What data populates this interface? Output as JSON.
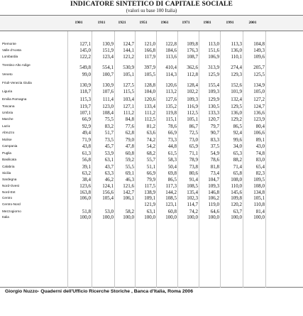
{
  "document": {
    "title": "INDICATORE SINTETICO DI CAPITALE SOCIALE",
    "subtitle": "(valori su base 100 Italia)",
    "source": "Giorgio Nuzzo- Quaderni dell'Ufficio Ricerche Storiche , Banca d'Italia, Roma 2006"
  },
  "table": {
    "columns": [
      "1901",
      "1911",
      "1921",
      "1951",
      "1961",
      "1971",
      "1981",
      "1991",
      "2001"
    ],
    "rows": [
      {
        "region": "Piemonte",
        "values": [
          "127,1",
          "130,9",
          "124,7",
          "121,0",
          "122,8",
          "109,8",
          "113,0",
          "113,3",
          "104,8"
        ]
      },
      {
        "region": "Valle d'Aosta",
        "values": [
          "145,0",
          "151,9",
          "144,1",
          "166,8",
          "184,6",
          "176,3",
          "151,6",
          "136,0",
          "149,3"
        ]
      },
      {
        "region": "Lombardia",
        "values": [
          "122,2",
          "123,4",
          "121,2",
          "117,9",
          "113,6",
          "108,7",
          "106,9",
          "110,1",
          "109,6"
        ]
      },
      {
        "region": "Trentino-Alto Adige",
        "values": [
          "549,8",
          "554,1",
          "530,9",
          "397,9",
          "410,4",
          "362,6",
          "313,9",
          "274,4",
          "205,7"
        ]
      },
      {
        "region": "Veneto",
        "values": [
          "99,0",
          "100,7",
          "105,1",
          "105,5",
          "114,3",
          "112,8",
          "125,9",
          "129,3",
          "125,5"
        ]
      },
      {
        "region": "Friuli-Venezia Giulia",
        "values": [
          "130,9",
          "130,9",
          "127,5",
          "128,8",
          "120,6",
          "128,4",
          "155,4",
          "152,6",
          "134,9"
        ]
      },
      {
        "region": "Liguria",
        "values": [
          "118,7",
          "107,6",
          "115,5",
          "104,0",
          "113,2",
          "102,2",
          "109,3",
          "101,9",
          "105,0"
        ]
      },
      {
        "region": "Emilia Romagna",
        "values": [
          "115,3",
          "111,4",
          "103,4",
          "120,6",
          "127,6",
          "109,3",
          "129,9",
          "132,4",
          "127,2"
        ]
      },
      {
        "region": "Toscana",
        "values": [
          "119,7",
          "123,0",
          "127,1",
          "133,4",
          "135,2",
          "116,9",
          "130,5",
          "129,5",
          "124,7"
        ]
      },
      {
        "region": "Umbria",
        "values": [
          "107,1",
          "108,4",
          "111,2",
          "111,2",
          "119,8",
          "112,5",
          "133,3",
          "136,0",
          "136,6"
        ]
      },
      {
        "region": "Marche",
        "values": [
          "66,9",
          "75,5",
          "84,8",
          "112,5",
          "115,1",
          "105,1",
          "120,7",
          "129,2",
          "123,9"
        ]
      },
      {
        "region": "Lazio",
        "values": [
          "92,9",
          "83,2",
          "77,6",
          "81,2",
          "78,6",
          "86,7",
          "79,7",
          "86,5",
          "80,4"
        ]
      },
      {
        "region": "Abruzzo",
        "values": [
          "49,4",
          "51,7",
          "62,8",
          "63,6",
          "66,9",
          "72,5",
          "90,7",
          "92,4",
          "106,6"
        ]
      },
      {
        "region": "Molise",
        "values": [
          "71,9",
          "73,5",
          "79,0",
          "74,2",
          "73,3",
          "73,0",
          "83,3",
          "99,6",
          "89,1"
        ]
      },
      {
        "region": "Campania",
        "values": [
          "43,8",
          "45,7",
          "47,8",
          "54,2",
          "44,8",
          "65,9",
          "37,5",
          "34,0",
          "43,0"
        ]
      },
      {
        "region": "Puglia",
        "values": [
          "61,3",
          "53,9",
          "60,8",
          "68,2",
          "61,5",
          "71,1",
          "54,9",
          "65,3",
          "74,8"
        ]
      },
      {
        "region": "Basilicata",
        "values": [
          "56,8",
          "63,1",
          "59,2",
          "55,7",
          "58,3",
          "78,9",
          "78,6",
          "88,2",
          "83,0"
        ]
      },
      {
        "region": "Calabria",
        "values": [
          "39,1",
          "43,7",
          "55,5",
          "51,1",
          "50,4",
          "73,8",
          "81,8",
          "71,4",
          "65,4"
        ]
      },
      {
        "region": "Sicilia",
        "values": [
          "63,2",
          "63,3",
          "69,1",
          "66,9",
          "69,8",
          "80,6",
          "73,4",
          "65,8",
          "82,3"
        ]
      },
      {
        "region": "Sardegna",
        "values": [
          "38,4",
          "46,2",
          "46,3",
          "79,9",
          "86,5",
          "91,4",
          "104,7",
          "108,0",
          "109,5"
        ]
      },
      {
        "region": "Nord-Ovest",
        "values": [
          "123,6",
          "124,1",
          "121,6",
          "117,5",
          "117,3",
          "108,5",
          "109,3",
          "110,0",
          "108,0"
        ]
      },
      {
        "region": "Nord-Est",
        "values": [
          "163,8",
          "156,6",
          "142,7",
          "138,9",
          "144,2",
          "135,4",
          "146,8",
          "145,6",
          "134,8"
        ]
      },
      {
        "region": "Centro",
        "values": [
          "106,0",
          "105,4",
          "106,1",
          "109,1",
          "108,5",
          "102,3",
          "106,2",
          "109,8",
          "105,1"
        ]
      },
      {
        "region": "Centro-Nord",
        "values": [
          "",
          "",
          "",
          "121,9",
          "123,1",
          "114,7",
          "119,0",
          "120,2",
          "110,8"
        ]
      },
      {
        "region": "Mezzogiorno",
        "values": [
          "51,8",
          "53,0",
          "58,2",
          "63,1",
          "60,8",
          "74,2",
          "64,6",
          "63,7",
          "81,4"
        ]
      },
      {
        "region": "Italia",
        "values": [
          "100,0",
          "100,0",
          "100,0",
          "100,0",
          "100,0",
          "100,0",
          "100,0",
          "100,0",
          "100,0"
        ]
      }
    ]
  }
}
